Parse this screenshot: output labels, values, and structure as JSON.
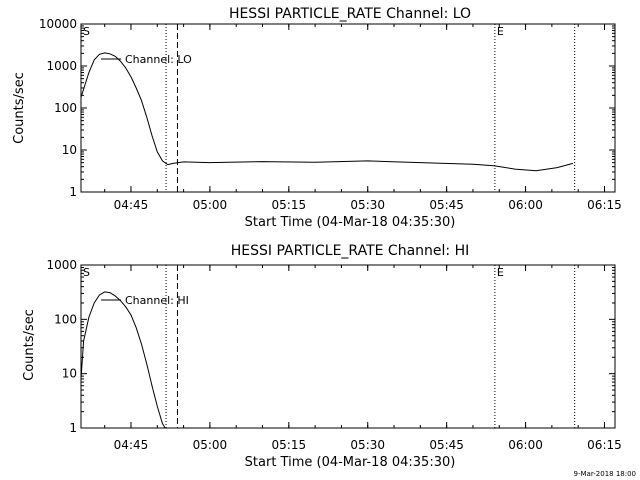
{
  "footer_timestamp": "9-Mar-2018 18:00",
  "chart_data": [
    {
      "type": "line",
      "title": "HESSI PARTICLE_RATE Channel: LO",
      "xlabel": "Start Time (04-Mar-18 04:35:30)",
      "ylabel": "Counts/sec",
      "y_scale": "log",
      "ylim": [
        1,
        10000
      ],
      "xlim": [
        "04:35:30",
        "06:17:00"
      ],
      "x_ticks": [
        "04:45",
        "05:00",
        "05:15",
        "05:30",
        "05:45",
        "06:00",
        "06:15"
      ],
      "y_ticks": [
        "1",
        "10",
        "100",
        "1000",
        "10000"
      ],
      "legend": "Channel: LO",
      "markers": [
        {
          "label": "S",
          "time": "04:35:30",
          "style": "dotted"
        },
        {
          "label": "",
          "time": "04:51:40",
          "style": "dotted"
        },
        {
          "label": "",
          "time": "04:53:50",
          "style": "dashed"
        },
        {
          "label": "E",
          "time": "05:54:10",
          "style": "dotted"
        },
        {
          "label": "",
          "time": "06:09:20",
          "style": "dotted"
        }
      ],
      "series": [
        {
          "x": [
            "04:35:30",
            "04:37:00",
            "04:38:00",
            "04:39:00",
            "04:40:00",
            "04:41:00",
            "04:42:00",
            "04:43:00",
            "04:44:00",
            "04:45:00",
            "04:46:00",
            "04:47:00",
            "04:48:00",
            "04:49:00",
            "04:50:00",
            "04:51:00",
            "04:52:00",
            "04:53:00",
            "04:55:00",
            "05:00:00",
            "05:10:00",
            "05:20:00",
            "05:30:00",
            "05:40:00",
            "05:50:00",
            "05:54:00",
            "05:58:00",
            "06:02:00",
            "06:06:00",
            "06:09:00"
          ],
          "values": [
            180,
            700,
            1400,
            1900,
            2050,
            1950,
            1700,
            1300,
            900,
            550,
            300,
            150,
            60,
            22,
            9,
            5.5,
            4.5,
            4.8,
            5.2,
            5.0,
            5.3,
            5.1,
            5.5,
            5.0,
            4.6,
            4.2,
            3.5,
            3.2,
            3.8,
            4.8
          ]
        }
      ]
    },
    {
      "type": "line",
      "title": "HESSI PARTICLE_RATE Channel: HI",
      "xlabel": "Start Time (04-Mar-18 04:35:30)",
      "ylabel": "Counts/sec",
      "y_scale": "log",
      "ylim": [
        1,
        1000
      ],
      "xlim": [
        "04:35:30",
        "06:17:00"
      ],
      "x_ticks": [
        "04:45",
        "05:00",
        "05:15",
        "05:30",
        "05:45",
        "06:00",
        "06:15"
      ],
      "y_ticks": [
        "1",
        "10",
        "100",
        "1000"
      ],
      "legend": "Channel: HI",
      "markers": [
        {
          "label": "S",
          "time": "04:35:30",
          "style": "dotted"
        },
        {
          "label": "",
          "time": "04:51:40",
          "style": "dotted"
        },
        {
          "label": "",
          "time": "04:53:50",
          "style": "dashed"
        },
        {
          "label": "E",
          "time": "05:54:10",
          "style": "dotted"
        },
        {
          "label": "",
          "time": "06:09:20",
          "style": "dotted"
        }
      ],
      "series": [
        {
          "x": [
            "04:35:30",
            "04:36:00",
            "04:37:00",
            "04:38:00",
            "04:39:00",
            "04:40:00",
            "04:41:00",
            "04:42:00",
            "04:43:00",
            "04:44:00",
            "04:45:00",
            "04:46:00",
            "04:47:00",
            "04:48:00",
            "04:49:00",
            "04:50:00",
            "04:51:00",
            "04:51:30"
          ],
          "values": [
            8,
            40,
            110,
            200,
            280,
            320,
            310,
            270,
            220,
            170,
            120,
            70,
            35,
            15,
            6,
            2.5,
            1.2,
            1.0
          ]
        }
      ]
    }
  ]
}
